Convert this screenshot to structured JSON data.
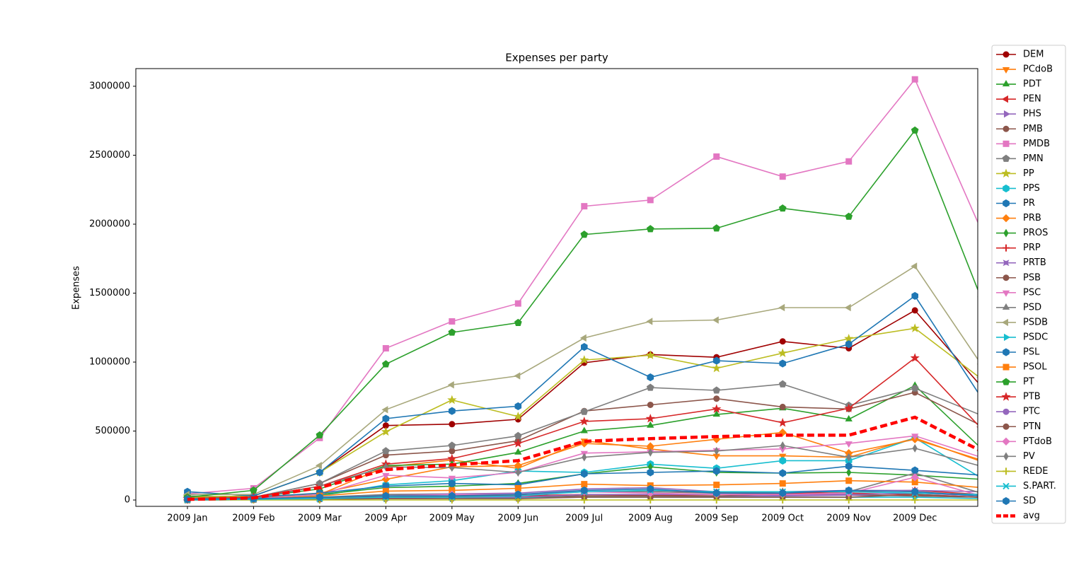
{
  "chart_data": {
    "type": "line",
    "title": "Expenses per party",
    "ylabel": "Expenses",
    "categories": [
      "2009 Jan",
      "2009 Feb",
      "2009 Mar",
      "2009 Apr",
      "2009 May",
      "2009 Jun",
      "2009 Jul",
      "2009 Aug",
      "2009 Sep",
      "2009 Oct",
      "2009 Nov",
      "2009 Dec",
      null
    ],
    "xlim": [
      -0.78,
      11.95
    ],
    "ylim": [
      -46000,
      3128000
    ],
    "yticks": [
      0,
      500000,
      1000000,
      1500000,
      2000000,
      2500000,
      3000000
    ],
    "legend": "outside right",
    "series": [
      {
        "name": "DEM",
        "color": "#a00000",
        "marker": "o",
        "values": [
          20000,
          30000,
          200000,
          540000,
          550000,
          585000,
          995000,
          1055000,
          1035000,
          1150000,
          1100000,
          1375000,
          825000
        ]
      },
      {
        "name": "PCdoB",
        "color": "#ff7f0e",
        "marker": "v",
        "values": [
          5000,
          10000,
          40000,
          240000,
          290000,
          230000,
          430000,
          370000,
          320000,
          320000,
          310000,
          450000,
          280000
        ]
      },
      {
        "name": "PDT",
        "color": "#2ca02c",
        "marker": "^",
        "values": [
          10000,
          20000,
          80000,
          250000,
          260000,
          345000,
          500000,
          540000,
          620000,
          665000,
          585000,
          830000,
          375000
        ]
      },
      {
        "name": "PEN",
        "color": "#d62728",
        "marker": "<",
        "values": [
          0,
          5000,
          10000,
          20000,
          25000,
          30000,
          40000,
          35000,
          40000,
          45000,
          50000,
          40000,
          20000
        ]
      },
      {
        "name": "PHS",
        "color": "#9467bd",
        "marker": ">",
        "values": [
          0,
          2000,
          10000,
          15000,
          20000,
          20000,
          30000,
          30000,
          25000,
          30000,
          35000,
          30000,
          20000
        ]
      },
      {
        "name": "PMB",
        "color": "#8c564b",
        "marker": "o",
        "values": [
          20000,
          20000,
          120000,
          325000,
          355000,
          430000,
          645000,
          690000,
          735000,
          675000,
          660000,
          780000,
          540000
        ]
      },
      {
        "name": "PMDB",
        "color": "#e377c2",
        "marker": "s",
        "values": [
          45000,
          85000,
          450000,
          1100000,
          1295000,
          1425000,
          2130000,
          2175000,
          2490000,
          2345000,
          2455000,
          3050000,
          1960000
        ]
      },
      {
        "name": "PMN",
        "color": "#7f7f7f",
        "marker": "p",
        "values": [
          30000,
          20000,
          120000,
          355000,
          395000,
          465000,
          640000,
          815000,
          795000,
          840000,
          685000,
          810000,
          615000
        ]
      },
      {
        "name": "PP",
        "color": "#bcbd22",
        "marker": "*",
        "values": [
          20000,
          30000,
          200000,
          495000,
          725000,
          605000,
          1015000,
          1050000,
          955000,
          1065000,
          1170000,
          1245000,
          880000
        ]
      },
      {
        "name": "PPS",
        "color": "#17becf",
        "marker": "h",
        "values": [
          10000,
          10000,
          30000,
          110000,
          140000,
          210000,
          200000,
          260000,
          230000,
          285000,
          285000,
          450000,
          160000
        ]
      },
      {
        "name": "PR",
        "color": "#1f77b4",
        "marker": "h",
        "values": [
          60000,
          30000,
          200000,
          590000,
          645000,
          680000,
          1110000,
          890000,
          1010000,
          990000,
          1130000,
          1480000,
          745000
        ]
      },
      {
        "name": "PRB",
        "color": "#ff7f0e",
        "marker": "D",
        "values": [
          5000,
          10000,
          50000,
          150000,
          240000,
          250000,
          410000,
          390000,
          440000,
          490000,
          340000,
          440000,
          290000
        ]
      },
      {
        "name": "PROS",
        "color": "#2ca02c",
        "marker": "d",
        "values": [
          5000,
          10000,
          40000,
          90000,
          100000,
          120000,
          190000,
          240000,
          200000,
          195000,
          200000,
          180000,
          150000
        ]
      },
      {
        "name": "PRP",
        "color": "#d62728",
        "marker": "+",
        "values": [
          0,
          3000,
          15000,
          30000,
          30000,
          35000,
          60000,
          60000,
          55000,
          50000,
          60000,
          70000,
          40000
        ]
      },
      {
        "name": "PRTB",
        "color": "#9467bd",
        "marker": "X",
        "values": [
          0,
          2000,
          8000,
          40000,
          45000,
          50000,
          80000,
          90000,
          60000,
          60000,
          70000,
          70000,
          60000
        ]
      },
      {
        "name": "PSB",
        "color": "#8c564b",
        "marker": "o",
        "values": [
          5000,
          5000,
          15000,
          20000,
          20000,
          20000,
          30000,
          30000,
          30000,
          40000,
          40000,
          30000,
          20000
        ]
      },
      {
        "name": "PSC",
        "color": "#e377c2",
        "marker": "v",
        "values": [
          5000,
          10000,
          40000,
          180000,
          160000,
          200000,
          340000,
          350000,
          360000,
          370000,
          410000,
          465000,
          310000
        ]
      },
      {
        "name": "PSD",
        "color": "#7f7f7f",
        "marker": "^",
        "values": [
          5000,
          5000,
          20000,
          40000,
          40000,
          40000,
          60000,
          60000,
          50000,
          60000,
          60000,
          195000,
          50000
        ]
      },
      {
        "name": "PSDB",
        "color": "#a8a87c",
        "marker": "<",
        "values": [
          40000,
          40000,
          250000,
          655000,
          835000,
          900000,
          1175000,
          1295000,
          1305000,
          1395000,
          1395000,
          1695000,
          985000
        ]
      },
      {
        "name": "PSDC",
        "color": "#17becf",
        "marker": ">",
        "values": [
          0,
          2000,
          5000,
          10000,
          10000,
          15000,
          20000,
          20000,
          20000,
          20000,
          20000,
          20000,
          10000
        ]
      },
      {
        "name": "PSL",
        "color": "#1f77b4",
        "marker": "h",
        "values": [
          10000,
          20000,
          50000,
          100000,
          120000,
          110000,
          190000,
          200000,
          210000,
          195000,
          245000,
          215000,
          180000
        ]
      },
      {
        "name": "PSOL",
        "color": "#ff7f0e",
        "marker": "s",
        "values": [
          0,
          5000,
          30000,
          65000,
          70000,
          85000,
          115000,
          105000,
          110000,
          120000,
          140000,
          130000,
          90000
        ]
      },
      {
        "name": "PT",
        "color": "#2ca02c",
        "marker": "p",
        "values": [
          20000,
          70000,
          470000,
          985000,
          1215000,
          1285000,
          1925000,
          1965000,
          1970000,
          2115000,
          2055000,
          2680000,
          1465000
        ]
      },
      {
        "name": "PTB",
        "color": "#d62728",
        "marker": "*",
        "values": [
          10000,
          20000,
          100000,
          260000,
          300000,
          410000,
          570000,
          590000,
          660000,
          560000,
          665000,
          1030000,
          520000
        ]
      },
      {
        "name": "PTC",
        "color": "#9467bd",
        "marker": "o",
        "values": [
          0,
          2000,
          10000,
          15000,
          20000,
          20000,
          40000,
          40000,
          40000,
          35000,
          40000,
          50000,
          30000
        ]
      },
      {
        "name": "PTN",
        "color": "#8c564b",
        "marker": "o",
        "values": [
          0,
          2000,
          5000,
          10000,
          10000,
          10000,
          20000,
          20000,
          20000,
          20000,
          20000,
          40000,
          20000
        ]
      },
      {
        "name": "PTdoB",
        "color": "#e377c2",
        "marker": "D",
        "values": [
          0,
          5000,
          20000,
          30000,
          40000,
          40000,
          60000,
          50000,
          40000,
          40000,
          50000,
          165000,
          30000
        ]
      },
      {
        "name": "PV",
        "color": "#7f7f7f",
        "marker": "d",
        "values": [
          10000,
          10000,
          100000,
          240000,
          235000,
          200000,
          310000,
          345000,
          355000,
          395000,
          310000,
          375000,
          245000
        ]
      },
      {
        "name": "REDE",
        "color": "#bcbd22",
        "marker": "+",
        "values": [
          0,
          0,
          0,
          0,
          0,
          0,
          0,
          0,
          0,
          0,
          0,
          0,
          0
        ]
      },
      {
        "name": "S.PART.",
        "color": "#17becf",
        "marker": "x",
        "values": [
          0,
          5000,
          10000,
          20000,
          20000,
          30000,
          60000,
          70000,
          60000,
          60000,
          60000,
          50000,
          40000
        ]
      },
      {
        "name": "SD",
        "color": "#1f77b4",
        "marker": "h",
        "values": [
          5000,
          10000,
          20000,
          30000,
          30000,
          40000,
          70000,
          80000,
          50000,
          50000,
          70000,
          60000,
          30000
        ]
      },
      {
        "name": "avg",
        "color": "#ff0000",
        "style": "dashed",
        "values": [
          5000,
          15000,
          90000,
          220000,
          255000,
          285000,
          425000,
          445000,
          460000,
          470000,
          470000,
          600000,
          355000
        ]
      }
    ]
  }
}
